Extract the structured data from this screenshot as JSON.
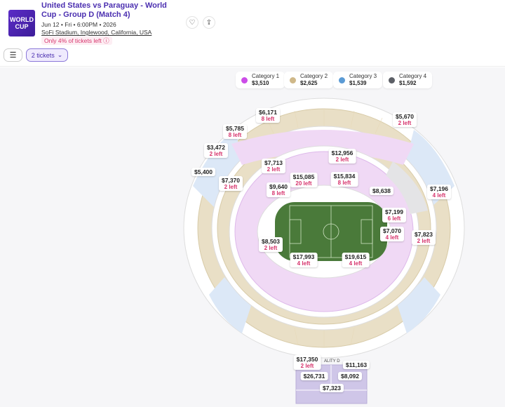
{
  "event": {
    "logo_text": "WORLD CUP",
    "title": "United States vs Paraguay - World Cup - Group D (Match 4)",
    "datetime": "Jun 12 • Fri • 6:00PM • 2026",
    "venue": "SoFi Stadium, Inglewood, California, USA",
    "availability": "Only 4% of tickets left ⓘ",
    "favorite_icon": "heart-icon",
    "share_icon": "share-icon"
  },
  "toolbar": {
    "filter_icon": "sliders-icon",
    "tickets_label": "2 tickets",
    "tickets_chevron": "⌄"
  },
  "legend": [
    {
      "label": "Category 1",
      "price": "$3,510",
      "color": "#cc4de8"
    },
    {
      "label": "Category 2",
      "price": "$2,625",
      "color": "#cfb889"
    },
    {
      "label": "Category 3",
      "price": "$1,539",
      "color": "#5b9bd5"
    },
    {
      "label": "Category 4",
      "price": "$1,592",
      "color": "#5c5f66"
    }
  ],
  "map": {
    "suite_label": "ALITY D",
    "prices": [
      {
        "price": "$6,171",
        "left": "8 left"
      },
      {
        "price": "$5,670",
        "left": "2 left"
      },
      {
        "price": "$5,785",
        "left": "8 left"
      },
      {
        "price": "$3,472",
        "left": "2 left"
      },
      {
        "price": "$12,956",
        "left": "2 left"
      },
      {
        "price": "$7,713",
        "left": "2 left"
      },
      {
        "price": "$5,400",
        "left": ""
      },
      {
        "price": "$15,085",
        "left": "20 left"
      },
      {
        "price": "$15,834",
        "left": "8 left"
      },
      {
        "price": "$7,370",
        "left": "2 left"
      },
      {
        "price": "$9,640",
        "left": "8 left"
      },
      {
        "price": "$8,638",
        "left": ""
      },
      {
        "price": "$7,196",
        "left": "4 left"
      },
      {
        "price": "$7,199",
        "left": "6 left"
      },
      {
        "price": "$7,070",
        "left": "4 left"
      },
      {
        "price": "$7,823",
        "left": "2 left"
      },
      {
        "price": "$8,503",
        "left": "2 left"
      },
      {
        "price": "$17,993",
        "left": "4 left"
      },
      {
        "price": "$19,615",
        "left": "4 left"
      },
      {
        "price": "$17,350",
        "left": "2 left"
      },
      {
        "price": "$11,163",
        "left": ""
      },
      {
        "price": "$26,731",
        "left": ""
      },
      {
        "price": "$8,092",
        "left": ""
      },
      {
        "price": "$7,323",
        "left": ""
      }
    ]
  }
}
